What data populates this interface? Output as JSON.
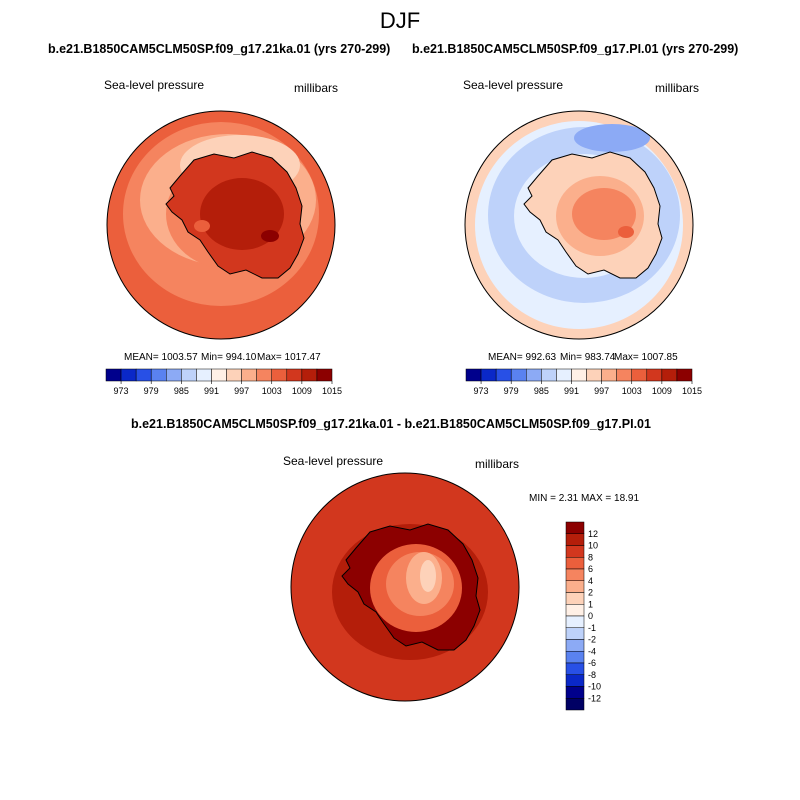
{
  "figure": {
    "title": "DJF"
  },
  "panels": {
    "left": {
      "case": "b.e21.B1850CAM5CLM50SP.f09_g17.21ka.01 (yrs 270-299)",
      "variable": "Sea-level pressure",
      "units": "millibars",
      "mean": "MEAN= 1003.57",
      "min": "Min= 994.10",
      "max": "Max= 1017.47"
    },
    "right": {
      "case": "b.e21.B1850CAM5CLM50SP.f09_g17.PI.01 (yrs 270-299)",
      "variable": "Sea-level pressure",
      "units": "millibars",
      "mean": "MEAN= 992.63",
      "min": "Min= 983.74",
      "max": "Max= 1007.85"
    },
    "diff": {
      "case": "b.e21.B1850CAM5CLM50SP.f09_g17.21ka.01 - b.e21.B1850CAM5CLM50SP.f09_g17.PI.01",
      "variable": "Sea-level pressure",
      "units": "millibars",
      "minmax": "MIN =   2.31 MAX =  18.91"
    }
  },
  "chart_data": [
    {
      "type": "heatmap",
      "projection": "south polar stereographic",
      "title": "b.e21.B1850CAM5CLM50SP.f09_g17.21ka.01 (yrs 270-299)",
      "variable": "Sea-level pressure",
      "units": "millibars",
      "stats": {
        "mean": 1003.57,
        "min": 994.1,
        "max": 1017.47
      },
      "colorbar": {
        "labels": [
          "973",
          "979",
          "985",
          "991",
          "997",
          "1003",
          "1009",
          "1015"
        ],
        "colors": [
          "#00008c",
          "#0a28c8",
          "#2850e6",
          "#5a82f0",
          "#8caaf5",
          "#bed2fa",
          "#e6f0ff",
          "#fff0e6",
          "#fdd2b9",
          "#fbaf8c",
          "#f5845f",
          "#eb5f3c",
          "#d2371e",
          "#b41e0a",
          "#8c0000"
        ]
      }
    },
    {
      "type": "heatmap",
      "projection": "south polar stereographic",
      "title": "b.e21.B1850CAM5CLM50SP.f09_g17.PI.01 (yrs 270-299)",
      "variable": "Sea-level pressure",
      "units": "millibars",
      "stats": {
        "mean": 992.63,
        "min": 983.74,
        "max": 1007.85
      },
      "colorbar": {
        "labels": [
          "973",
          "979",
          "985",
          "991",
          "997",
          "1003",
          "1009",
          "1015"
        ],
        "colors": [
          "#00008c",
          "#0a28c8",
          "#2850e6",
          "#5a82f0",
          "#8caaf5",
          "#bed2fa",
          "#e6f0ff",
          "#fff0e6",
          "#fdd2b9",
          "#fbaf8c",
          "#f5845f",
          "#eb5f3c",
          "#d2371e",
          "#b41e0a",
          "#8c0000"
        ]
      }
    },
    {
      "type": "heatmap",
      "projection": "south polar stereographic",
      "title": "b.e21.B1850CAM5CLM50SP.f09_g17.21ka.01 - b.e21.B1850CAM5CLM50SP.f09_g17.PI.01",
      "variable": "Sea-level pressure",
      "units": "millibars",
      "stats": {
        "min": 2.31,
        "max": 18.91
      },
      "colorbar": {
        "labels": [
          "12",
          "10",
          "8",
          "6",
          "4",
          "2",
          "1",
          "0",
          "-1",
          "-2",
          "-4",
          "-6",
          "-8",
          "-10",
          "-12"
        ],
        "colors": [
          "#8c0000",
          "#b41e0a",
          "#d2371e",
          "#eb5f3c",
          "#f5845f",
          "#fbaf8c",
          "#fdd2b9",
          "#fff0e6",
          "#e6f0ff",
          "#bed2fa",
          "#8caaf5",
          "#5a82f0",
          "#2850e6",
          "#0a28c8",
          "#00008c",
          "#000064"
        ]
      }
    }
  ]
}
